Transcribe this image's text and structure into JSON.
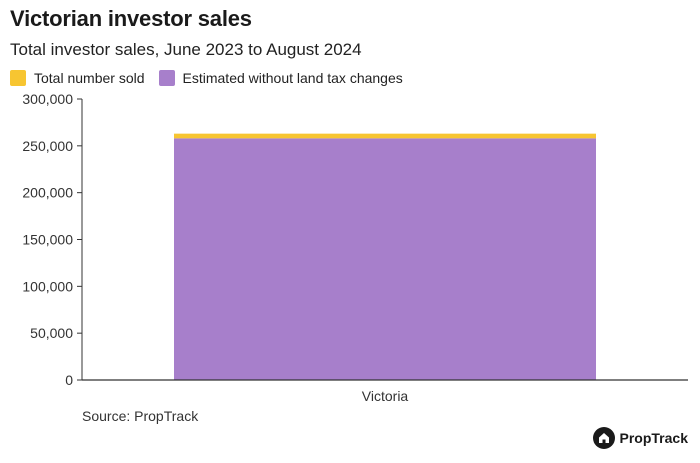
{
  "header": {
    "title": "Victorian investor sales",
    "subtitle": "Total investor sales, June 2023 to August 2024"
  },
  "legend": [
    {
      "label": "Total number sold",
      "color": "#f7c531"
    },
    {
      "label": "Estimated without land tax changes",
      "color": "#a77fcb"
    }
  ],
  "chart_data": {
    "type": "bar",
    "stacked": true,
    "categories": [
      "Victoria"
    ],
    "series": [
      {
        "name": "Estimated without land tax changes",
        "values": [
          258000
        ],
        "color": "#a77fcb"
      },
      {
        "name": "Total number sold",
        "values": [
          5000
        ],
        "color": "#f7c531"
      }
    ],
    "yticks": [
      "0",
      "50,000",
      "100,000",
      "150,000",
      "200,000",
      "250,000",
      "300,000"
    ],
    "ylim": [
      0,
      300000
    ],
    "title": "Victorian investor sales",
    "xlabel": "",
    "ylabel": ""
  },
  "footer": {
    "source": "Source: PropTrack",
    "brand": "PropTrack"
  }
}
